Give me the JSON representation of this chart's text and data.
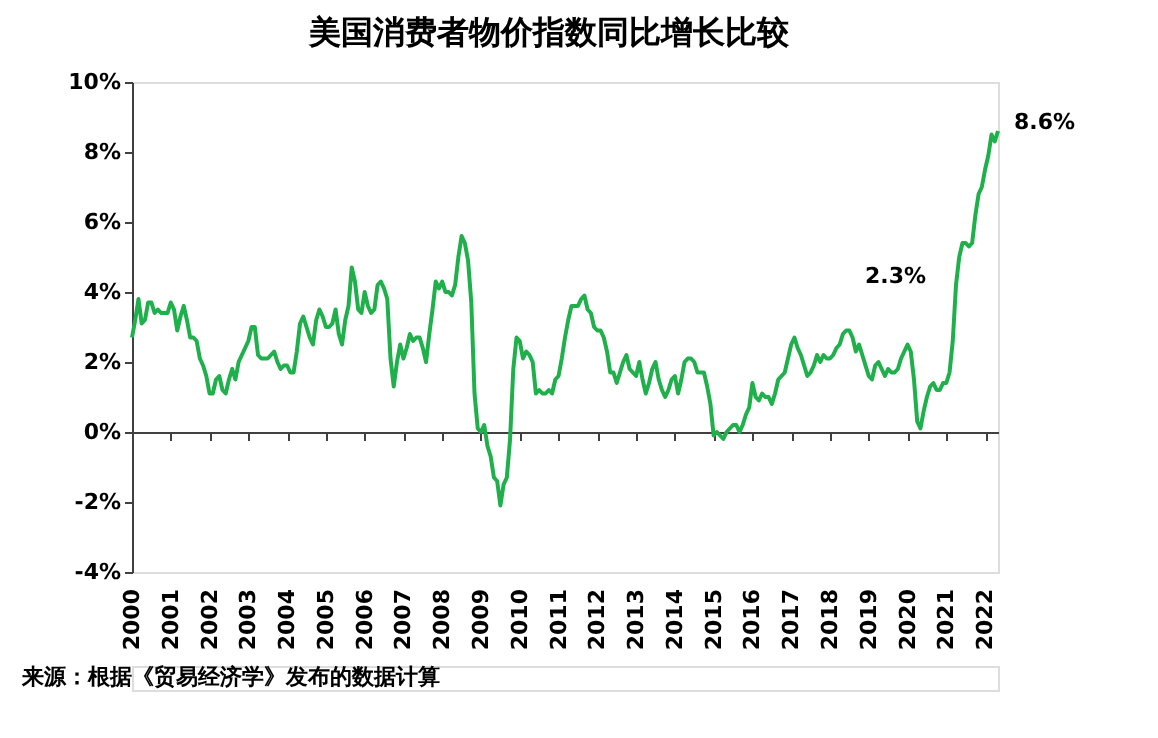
{
  "chart_data": {
    "type": "line",
    "title": "美国消费者物价指数同比增长比较",
    "categories": [
      "2000",
      null,
      null,
      null,
      null,
      null,
      null,
      null,
      null,
      null,
      null,
      null,
      "2001",
      null,
      null,
      null,
      null,
      null,
      null,
      null,
      null,
      null,
      null,
      null,
      "2002",
      null,
      null,
      null,
      null,
      null,
      null,
      null,
      null,
      null,
      null,
      null,
      "2003",
      null,
      null,
      null,
      null,
      null,
      null,
      null,
      null,
      null,
      null,
      null,
      "2004",
      null,
      null,
      null,
      null,
      null,
      null,
      null,
      null,
      null,
      null,
      null,
      "2005",
      null,
      null,
      null,
      null,
      null,
      null,
      null,
      null,
      null,
      null,
      null,
      "2006",
      null,
      null,
      null,
      null,
      null,
      null,
      null,
      null,
      null,
      null,
      null,
      "2007",
      null,
      null,
      null,
      null,
      null,
      null,
      null,
      null,
      null,
      null,
      null,
      "2008",
      null,
      null,
      null,
      null,
      null,
      null,
      null,
      null,
      null,
      null,
      null,
      "2009",
      null,
      null,
      null,
      null,
      null,
      null,
      null,
      null,
      null,
      null,
      null,
      "2010",
      null,
      null,
      null,
      null,
      null,
      null,
      null,
      null,
      null,
      null,
      null,
      "2011",
      null,
      null,
      null,
      null,
      null,
      null,
      null,
      null,
      null,
      null,
      null,
      "2012",
      null,
      null,
      null,
      null,
      null,
      null,
      null,
      null,
      null,
      null,
      null,
      "2013",
      null,
      null,
      null,
      null,
      null,
      null,
      null,
      null,
      null,
      null,
      null,
      "2014",
      null,
      null,
      null,
      null,
      null,
      null,
      null,
      null,
      null,
      null,
      null,
      "2015",
      null,
      null,
      null,
      null,
      null,
      null,
      null,
      null,
      null,
      null,
      null,
      "2016",
      null,
      null,
      null,
      null,
      null,
      null,
      null,
      null,
      null,
      null,
      null,
      "2017",
      null,
      null,
      null,
      null,
      null,
      null,
      null,
      null,
      null,
      null,
      null,
      "2018",
      null,
      null,
      null,
      null,
      null,
      null,
      null,
      null,
      null,
      null,
      null,
      "2019",
      null,
      null,
      null,
      null,
      null,
      null,
      null,
      null,
      null,
      null,
      null,
      "2020",
      null,
      null,
      null,
      null,
      null,
      null,
      null,
      null,
      null,
      null,
      null,
      "2021",
      null,
      null,
      null,
      null,
      null,
      null,
      null,
      null,
      null,
      null,
      null,
      "2022",
      null,
      null,
      null,
      null
    ],
    "ylim": [
      -4,
      10
    ],
    "yticks": [
      {
        "value": -4,
        "label": "-4%"
      },
      {
        "value": -2,
        "label": "-2%"
      },
      {
        "value": 0,
        "label": "0%"
      },
      {
        "value": 2,
        "label": "2%"
      },
      {
        "value": 4,
        "label": "4%"
      },
      {
        "value": 6,
        "label": "6%"
      },
      {
        "value": 8,
        "label": "8%"
      },
      {
        "value": 10,
        "label": "10%"
      }
    ],
    "marker": "none",
    "line_style": "solid",
    "series": [
      {
        "color": "#1fb04b",
        "values": [
          2.7,
          3.2,
          3.8,
          3.1,
          3.2,
          3.7,
          3.7,
          3.4,
          3.5,
          3.4,
          3.4,
          3.4,
          3.7,
          3.5,
          2.9,
          3.3,
          3.6,
          3.2,
          2.7,
          2.7,
          2.6,
          2.1,
          1.9,
          1.6,
          1.1,
          1.1,
          1.5,
          1.6,
          1.2,
          1.1,
          1.5,
          1.8,
          1.5,
          2.0,
          2.2,
          2.4,
          2.6,
          3.0,
          3.0,
          2.2,
          2.1,
          2.1,
          2.1,
          2.2,
          2.3,
          2.0,
          1.8,
          1.9,
          1.9,
          1.7,
          1.7,
          2.3,
          3.1,
          3.3,
          3.0,
          2.7,
          2.5,
          3.2,
          3.5,
          3.3,
          3.0,
          3.0,
          3.1,
          3.5,
          2.8,
          2.5,
          3.2,
          3.6,
          4.7,
          4.3,
          3.5,
          3.4,
          4.0,
          3.6,
          3.4,
          3.5,
          4.2,
          4.3,
          4.1,
          3.8,
          2.1,
          1.3,
          2.0,
          2.5,
          2.1,
          2.4,
          2.8,
          2.6,
          2.7,
          2.7,
          2.4,
          2.0,
          2.8,
          3.5,
          4.3,
          4.1,
          4.3,
          4.0,
          4.0,
          3.9,
          4.2,
          5.0,
          5.6,
          5.4,
          4.9,
          3.7,
          1.1,
          0.1,
          0.0,
          0.2,
          -0.4,
          -0.7,
          -1.3,
          -1.4,
          -2.1,
          -1.5,
          -1.3,
          -0.2,
          1.8,
          2.7,
          2.6,
          2.1,
          2.3,
          2.2,
          2.0,
          1.1,
          1.2,
          1.1,
          1.1,
          1.2,
          1.1,
          1.5,
          1.6,
          2.1,
          2.7,
          3.2,
          3.6,
          3.6,
          3.6,
          3.8,
          3.9,
          3.5,
          3.4,
          3.0,
          2.9,
          2.9,
          2.7,
          2.3,
          1.7,
          1.7,
          1.4,
          1.7,
          2.0,
          2.2,
          1.8,
          1.7,
          1.6,
          2.0,
          1.5,
          1.1,
          1.4,
          1.8,
          2.0,
          1.5,
          1.2,
          1.0,
          1.2,
          1.5,
          1.6,
          1.1,
          1.5,
          2.0,
          2.1,
          2.1,
          2.0,
          1.7,
          1.7,
          1.7,
          1.3,
          0.8,
          -0.1,
          0.0,
          -0.1,
          -0.2,
          0.0,
          0.1,
          0.2,
          0.2,
          0.0,
          0.2,
          0.5,
          0.7,
          1.4,
          1.0,
          0.9,
          1.1,
          1.0,
          1.0,
          0.8,
          1.1,
          1.5,
          1.6,
          1.7,
          2.1,
          2.5,
          2.7,
          2.4,
          2.2,
          1.9,
          1.6,
          1.7,
          1.9,
          2.2,
          2.0,
          2.2,
          2.1,
          2.1,
          2.2,
          2.4,
          2.5,
          2.8,
          2.9,
          2.9,
          2.7,
          2.3,
          2.5,
          2.2,
          1.9,
          1.6,
          1.5,
          1.9,
          2.0,
          1.8,
          1.6,
          1.8,
          1.7,
          1.7,
          1.8,
          2.1,
          2.3,
          2.5,
          2.3,
          1.5,
          0.3,
          0.1,
          0.6,
          1.0,
          1.3,
          1.4,
          1.2,
          1.2,
          1.4,
          1.4,
          1.7,
          2.6,
          4.2,
          5.0,
          5.4,
          5.4,
          5.3,
          5.4,
          6.2,
          6.8,
          7.0,
          7.5,
          7.9,
          8.5,
          8.3,
          8.6
        ]
      }
    ],
    "annotations": [
      {
        "text": "2.3%",
        "x": "2020",
        "y": 2.5
      },
      "8.6%",
      "来源：根据《贸易经济学》发布的数据计算"
    ]
  }
}
